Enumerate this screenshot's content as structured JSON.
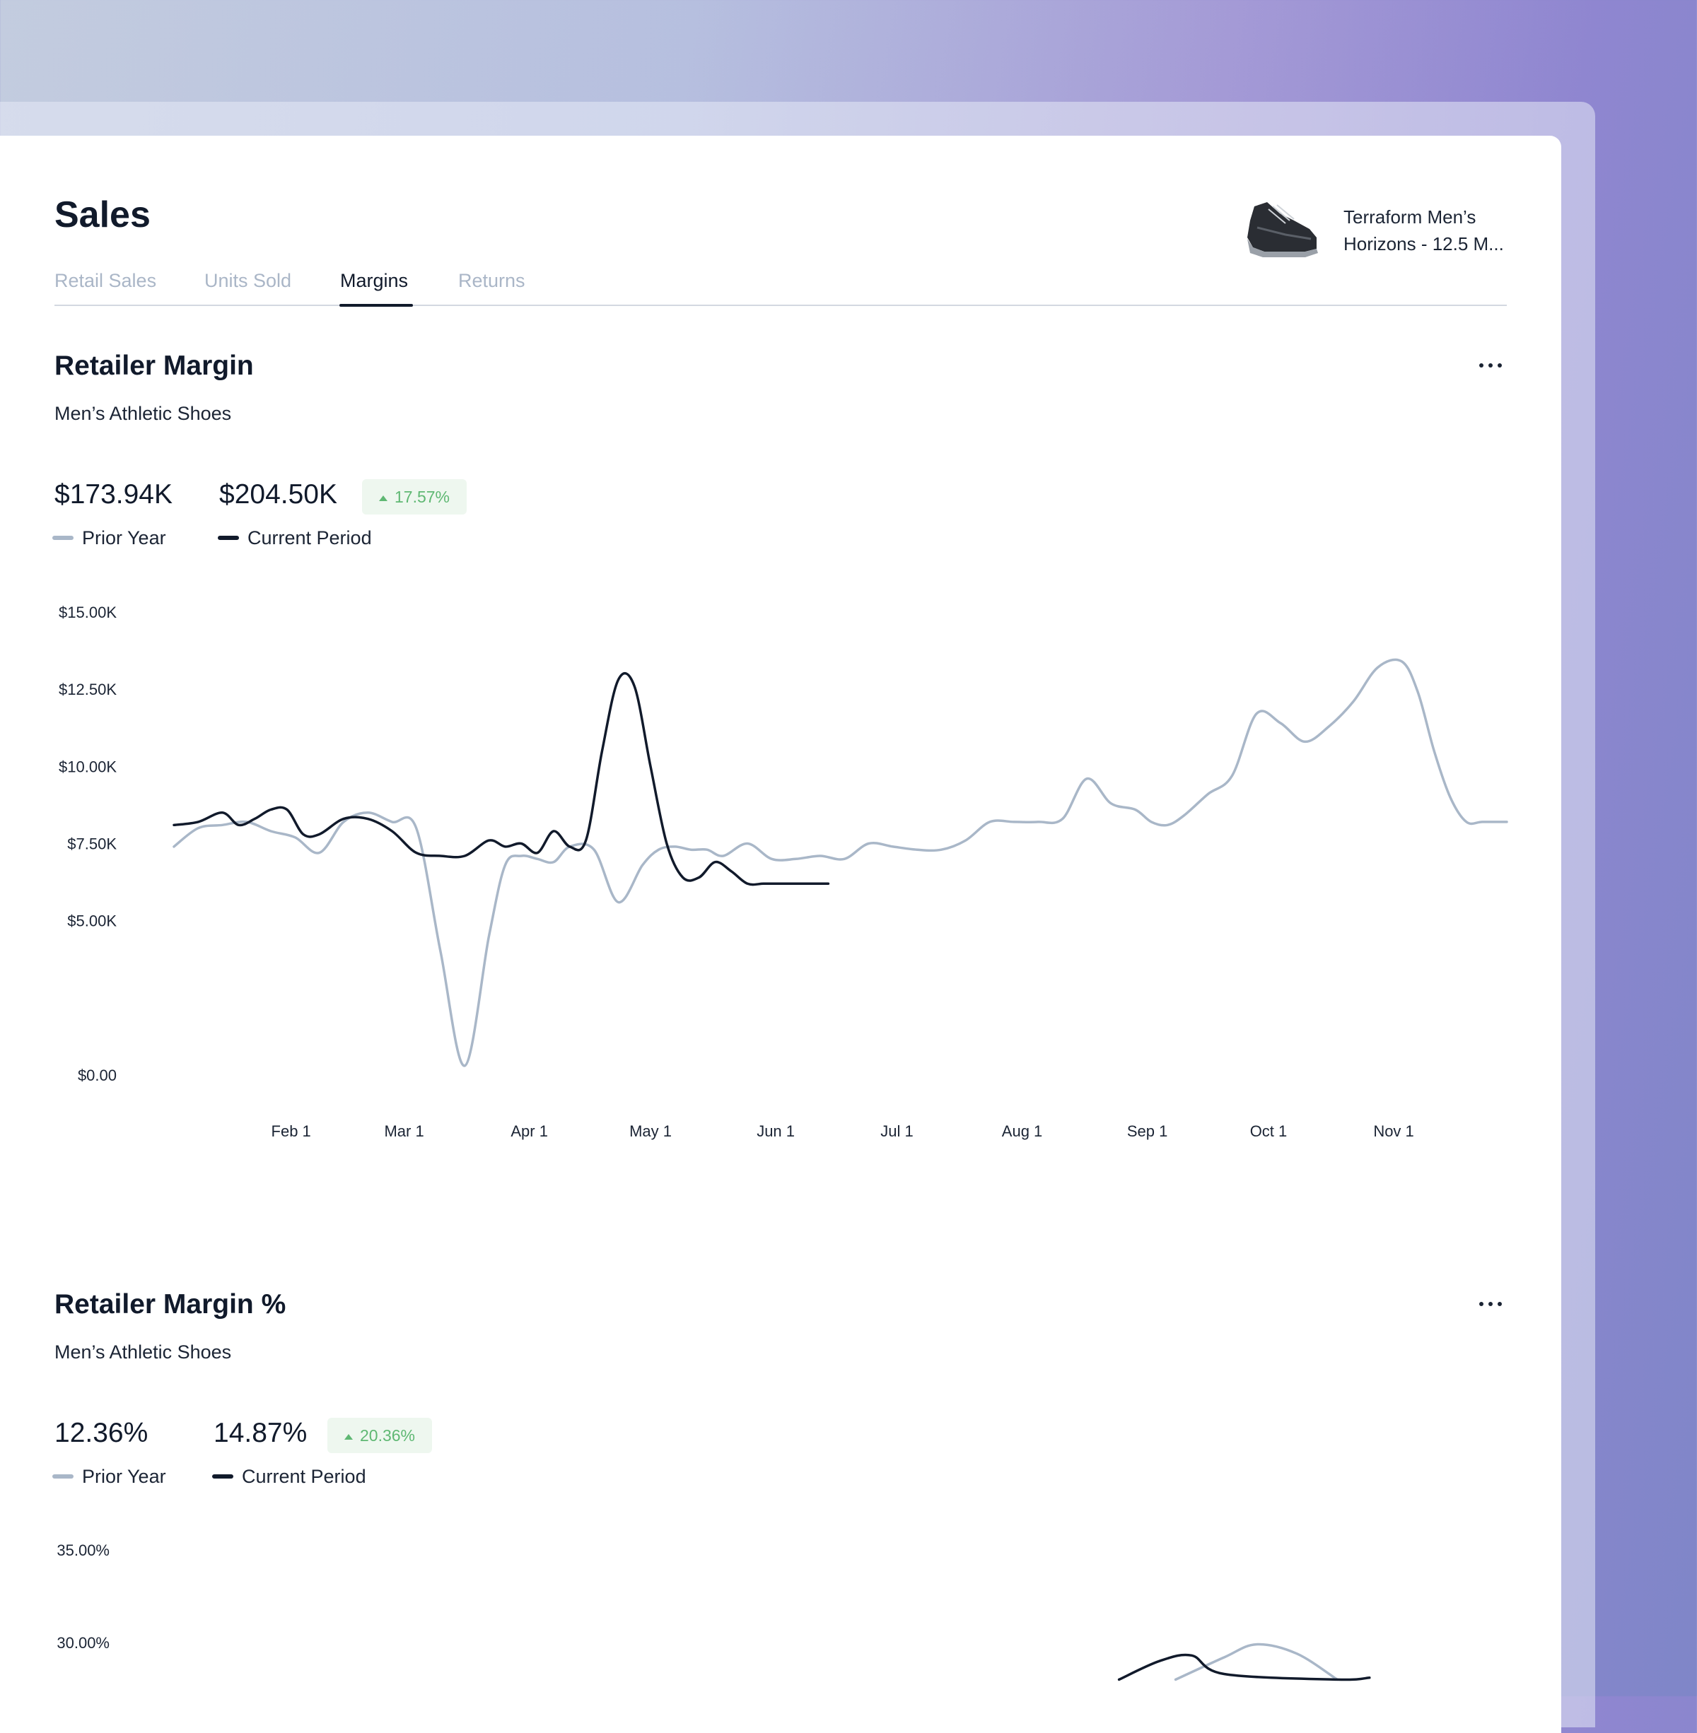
{
  "page": {
    "title": "Sales",
    "product": {
      "line1": "Terraform Men’s",
      "line2": "Horizons - 12.5 M...",
      "thumb_icon": "shoe-icon"
    },
    "tabs": [
      {
        "label": "Retail Sales",
        "active": false
      },
      {
        "label": "Units Sold",
        "active": false
      },
      {
        "label": "Margins",
        "active": true
      },
      {
        "label": "Returns",
        "active": false
      }
    ]
  },
  "colors": {
    "prior_year": "#a9b7c8",
    "current_period": "#111a2b",
    "badge_positive": "#5fb873"
  },
  "sections": [
    {
      "title": "Retailer Margin",
      "subtitle": "Men’s Athletic Shoes",
      "metrics": {
        "prior": "$173.94K",
        "current": "$204.50K",
        "change": "17.57%"
      },
      "legend": {
        "prior": "Prior Year",
        "current": "Current Period"
      }
    },
    {
      "title": "Retailer Margin %",
      "subtitle": "Men’s Athletic Shoes",
      "metrics": {
        "prior": "12.36%",
        "current": "14.87%",
        "change": "20.36%"
      },
      "legend": {
        "prior": "Prior Year",
        "current": "Current Period"
      }
    }
  ],
  "chart_data": [
    {
      "type": "line",
      "y_unit": "$K",
      "ylim": [
        0,
        15
      ],
      "yticks": [
        "$15.00K",
        "$12.50K",
        "$10.00K",
        "$7.50K",
        "$5.00K",
        "$0.00"
      ],
      "ytick_values": [
        15,
        12.5,
        10,
        7.5,
        5,
        0
      ],
      "xticks": [
        "Feb 1",
        "Mar 1",
        "Apr 1",
        "May 1",
        "Jun 1",
        "Jul 1",
        "Aug 1",
        "Sep 1",
        "Oct 1",
        "Nov 1"
      ],
      "xtick_days": [
        31,
        59,
        90,
        120,
        151,
        181,
        212,
        243,
        273,
        304
      ],
      "xlim_days": [
        2,
        332
      ],
      "grid": false,
      "series": [
        {
          "name": "Prior Year",
          "days": [
            2,
            8,
            14,
            20,
            26,
            32,
            38,
            44,
            50,
            56,
            62,
            68,
            74,
            80,
            84,
            88,
            92,
            96,
            100,
            106,
            112,
            118,
            122,
            126,
            130,
            134,
            138,
            144,
            150,
            156,
            162,
            168,
            174,
            180,
            186,
            192,
            198,
            204,
            210,
            216,
            222,
            228,
            234,
            240,
            244,
            248,
            252,
            258,
            264,
            270,
            276,
            282,
            288,
            294,
            300,
            306,
            310,
            314,
            318,
            322,
            326,
            332
          ],
          "values": [
            7.4,
            8.0,
            8.1,
            8.2,
            7.9,
            7.7,
            7.2,
            8.2,
            8.5,
            8.2,
            8.0,
            4.0,
            0.3,
            4.5,
            6.8,
            7.1,
            7.0,
            6.9,
            7.4,
            7.3,
            5.6,
            6.8,
            7.3,
            7.4,
            7.3,
            7.3,
            7.1,
            7.5,
            7.0,
            7.0,
            7.1,
            7.0,
            7.5,
            7.4,
            7.3,
            7.3,
            7.6,
            8.2,
            8.2,
            8.2,
            8.3,
            9.6,
            8.8,
            8.6,
            8.2,
            8.1,
            8.4,
            9.1,
            9.7,
            11.7,
            11.4,
            10.8,
            11.3,
            12.1,
            13.2,
            13.4,
            12.4,
            10.5,
            9.0,
            8.2,
            8.2,
            8.2
          ]
        },
        {
          "name": "Current Period",
          "days": [
            2,
            8,
            14,
            18,
            22,
            26,
            30,
            34,
            38,
            44,
            50,
            56,
            62,
            68,
            74,
            80,
            84,
            88,
            92,
            96,
            100,
            104,
            108,
            112,
            116,
            120,
            124,
            128,
            132,
            136,
            140,
            144,
            148,
            152,
            156,
            160,
            164
          ],
          "values": [
            8.1,
            8.2,
            8.5,
            8.1,
            8.3,
            8.6,
            8.6,
            7.8,
            7.8,
            8.3,
            8.3,
            7.9,
            7.2,
            7.1,
            7.1,
            7.6,
            7.4,
            7.5,
            7.2,
            7.9,
            7.4,
            7.6,
            10.5,
            12.8,
            12.6,
            10.0,
            7.5,
            6.4,
            6.4,
            6.9,
            6.6,
            6.2,
            6.2,
            6.2,
            6.2,
            6.2,
            6.2
          ]
        }
      ]
    },
    {
      "type": "line",
      "y_unit": "%",
      "yticks": [
        "35.00%",
        "30.00%"
      ],
      "ytick_values": [
        35,
        30
      ],
      "grid": false,
      "series": [
        {
          "name": "Prior Year",
          "days": [
            250,
            262,
            270,
            280,
            290
          ],
          "values": [
            28.0,
            29.2,
            29.9,
            29.4,
            28.0
          ]
        },
        {
          "name": "Current Period",
          "days": [
            236,
            246,
            254,
            262,
            290,
            298
          ],
          "values": [
            28.0,
            29.0,
            29.3,
            28.3,
            28.0,
            28.1
          ]
        }
      ]
    }
  ]
}
